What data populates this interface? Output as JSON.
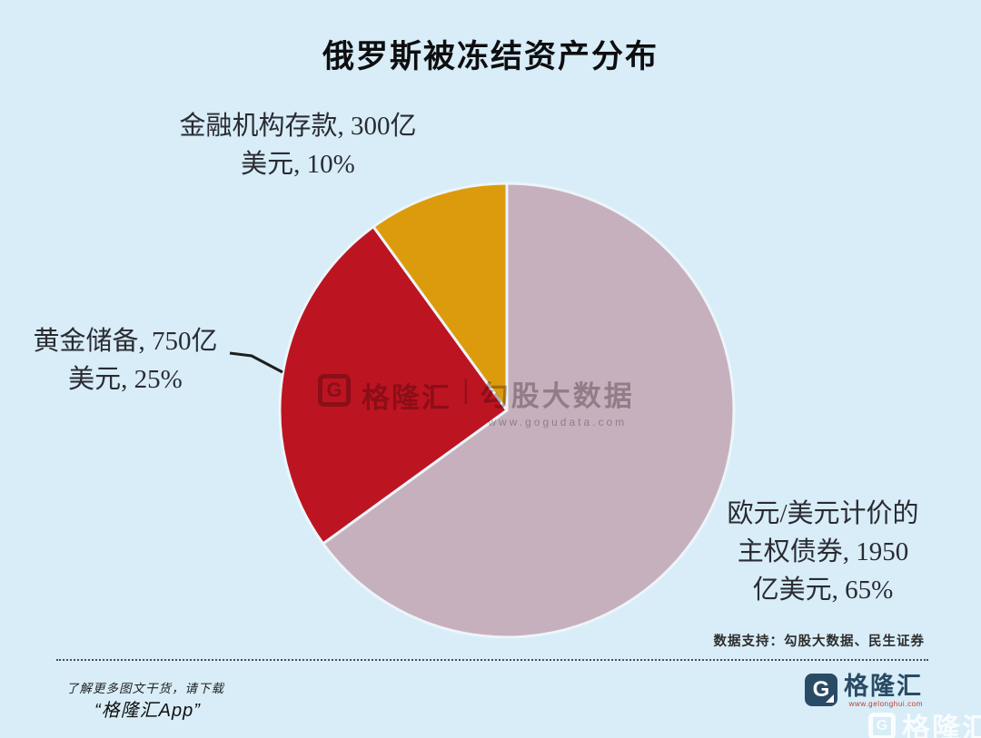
{
  "title": "俄罗斯被冻结资产分布",
  "chart_data": {
    "type": "pie",
    "title": "俄罗斯被冻结资产分布",
    "direction": "clockwise",
    "start_angle_deg": 0,
    "legend_position": "none",
    "labels_outside": true,
    "unit": "亿美元",
    "slices": [
      {
        "id": "sovereign-bonds",
        "label": "欧元/美元计价的主权债券",
        "value": 1950,
        "value_text": "1950亿美元",
        "percent": 65,
        "color": "#C7B0BD"
      },
      {
        "id": "gold-reserves",
        "label": "黄金储备",
        "value": 750,
        "value_text": "750亿美元",
        "percent": 25,
        "color": "#BD1421"
      },
      {
        "id": "deposits",
        "label": "金融机构存款",
        "value": 300,
        "value_text": "300亿美元",
        "percent": 10,
        "color": "#DC9B0C"
      }
    ]
  },
  "labels": {
    "deposits": {
      "line1": "金融机构存款, 300亿",
      "line2": "美元, 10%"
    },
    "gold": {
      "line1": "黄金储备, 750亿",
      "line2": "美元, 25%"
    },
    "bonds": {
      "line1": "欧元/美元计价的",
      "line2": "主权债券, 1950",
      "line3": "亿美元, 65%"
    }
  },
  "center_watermark": {
    "logo_letter": "G",
    "brand": "格隆汇",
    "separator": "|",
    "partner": "勾股大数据",
    "url": "www.gogudata.com"
  },
  "footer": {
    "data_support": "数据支持：勾股大数据、民生证券",
    "promo_line1": "了解更多图文干货，请下载",
    "promo_line2": "“格隆汇App”",
    "logo_letter": "G",
    "logo_name": "格隆汇",
    "logo_url": "www.gelonghui.com"
  },
  "corner_watermark": {
    "logo_letter": "G",
    "logo_name": "格隆汇"
  },
  "colors": {
    "background": "#D8EDF7",
    "title_text": "#0E0E10",
    "label_text": "#2A2B34",
    "slice_border": "#ECF5FA",
    "leader_line": "#1E1E1E",
    "logo_navy": "#2A4B66",
    "logo_url_red": "#C23A2B"
  }
}
